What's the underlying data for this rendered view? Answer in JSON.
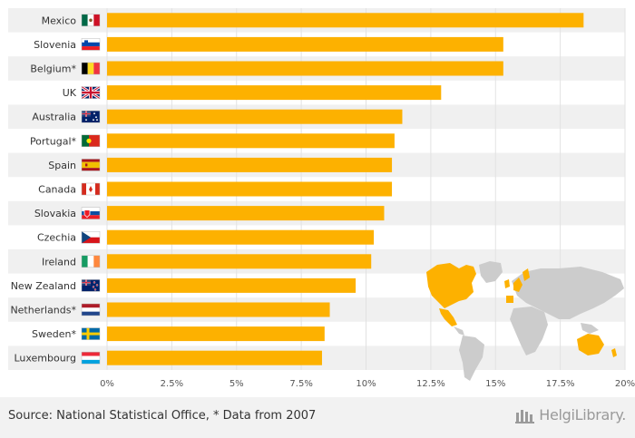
{
  "chart_data": {
    "type": "bar",
    "orientation": "horizontal",
    "title": "",
    "xlabel": "",
    "ylabel": "",
    "xlim": [
      0,
      20
    ],
    "tick_values": [
      0,
      2.5,
      5,
      7.5,
      10,
      12.5,
      15,
      17.5,
      20
    ],
    "tick_labels": [
      "0%",
      "2.5%",
      "5%",
      "7.5%",
      "10%",
      "12.5%",
      "15%",
      "17.5%",
      "20%"
    ],
    "categories": [
      "Mexico",
      "Slovenia",
      "Belgium*",
      "UK",
      "Australia",
      "Portugal*",
      "Spain",
      "Canada",
      "Slovakia",
      "Czechia",
      "Ireland",
      "New Zealand",
      "Netherlands*",
      "Sweden*",
      "Luxembourg"
    ],
    "values": [
      18.4,
      15.3,
      15.3,
      12.9,
      11.4,
      11.1,
      11.0,
      11.0,
      10.7,
      10.3,
      10.2,
      9.6,
      8.6,
      8.4,
      8.3
    ],
    "bar_color": "#fdb100",
    "grid": true
  },
  "flags": [
    "mexico-flag",
    "slovenia-flag",
    "belgium-flag",
    "uk-flag",
    "australia-flag",
    "portugal-flag",
    "spain-flag",
    "canada-flag",
    "slovakia-flag",
    "czechia-flag",
    "ireland-flag",
    "new-zealand-flag",
    "netherlands-flag",
    "sweden-flag",
    "luxembourg-flag"
  ],
  "footer": {
    "source": "Source: National Statistical Office, * Data from 2007",
    "brand": "HelgiLibrary."
  },
  "colors": {
    "highlight_map": "#fdb100",
    "map_base": "#cccccc",
    "row_stripe": "#f0f0f0"
  }
}
